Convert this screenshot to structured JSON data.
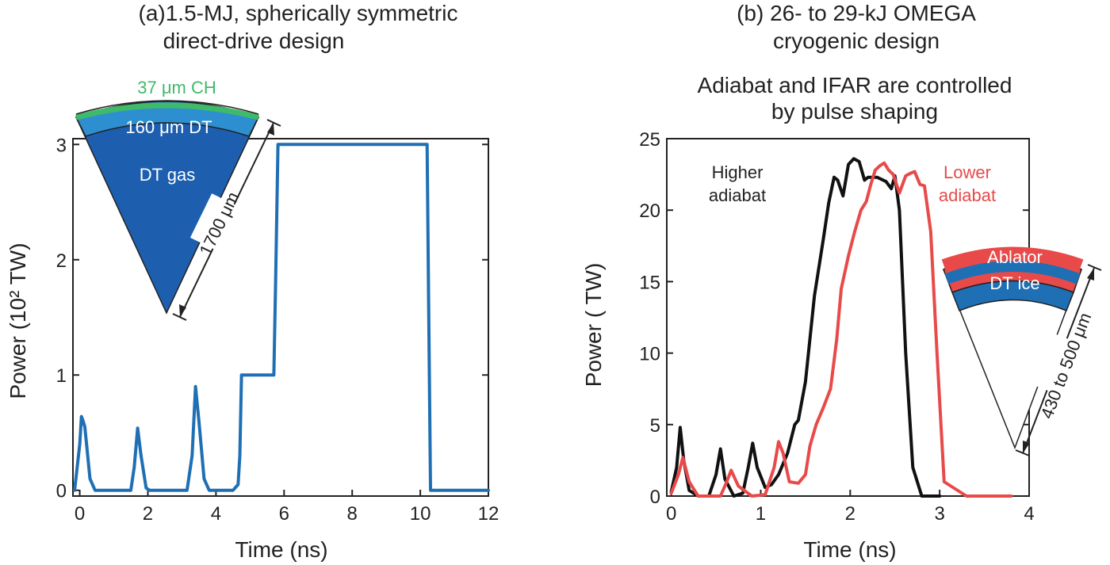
{
  "chart_data": [
    {
      "type": "line",
      "title": "(a)1.5-MJ, spherically symmetric",
      "subtitle": "direct-drive design",
      "xlabel": "Time (ns)",
      "ylabel": "Power (10² TW)",
      "xlim": [
        -0.2,
        12
      ],
      "ylim": [
        -0.05,
        3.05
      ],
      "xticks": [
        0,
        2,
        4,
        6,
        8,
        10,
        12
      ],
      "yticks": [
        0,
        1,
        2,
        3
      ],
      "grid": false,
      "series": [
        {
          "color": "#1f6fb5",
          "x": [
            -0.15,
            0.0,
            0.05,
            0.1,
            0.15,
            0.3,
            0.45,
            1.5,
            1.6,
            1.7,
            1.8,
            1.95,
            2.05,
            3.15,
            3.3,
            3.4,
            3.5,
            3.65,
            3.8,
            4.5,
            4.65,
            4.7,
            4.75,
            5.7,
            5.75,
            5.82,
            5.88,
            10.2,
            10.25,
            10.3,
            12.0
          ],
          "y": [
            0.0,
            0.4,
            0.64,
            0.6,
            0.55,
            0.1,
            0.0,
            0.0,
            0.2,
            0.54,
            0.3,
            0.02,
            0.0,
            0.0,
            0.3,
            0.9,
            0.6,
            0.1,
            0.0,
            0.0,
            0.05,
            0.3,
            1.0,
            1.0,
            1.8,
            3.0,
            3.0,
            3.0,
            1.5,
            0.0,
            0.0
          ]
        }
      ],
      "inset": {
        "shell_label": "37 μm CH",
        "ice_label": "160 μm DT",
        "gas_label": "DT gas",
        "radius_label": "1700 μm",
        "colors": {
          "shell": "#3fba6a",
          "ice": "#2e8fd0",
          "gas": "#1d5fae"
        }
      }
    },
    {
      "type": "line",
      "title": "(b) 26- to 29-kJ OMEGA",
      "subtitle": "cryogenic design",
      "note_line1": "Adiabat and IFAR are controlled",
      "note_line2": "by pulse shaping",
      "xlabel": "Time (ns)",
      "ylabel": "Power ( TW)",
      "xlim": [
        -0.05,
        4
      ],
      "ylim": [
        0,
        25
      ],
      "xticks": [
        0,
        1,
        2,
        3,
        4
      ],
      "yticks": [
        0,
        5,
        10,
        15,
        20,
        25
      ],
      "grid": false,
      "series": [
        {
          "name": "Higher adiabat",
          "label_line1": "Higher",
          "label_line2": "adiabat",
          "color": "#111111",
          "x": [
            0.0,
            0.06,
            0.1,
            0.14,
            0.2,
            0.3,
            0.42,
            0.5,
            0.55,
            0.6,
            0.7,
            0.8,
            0.86,
            0.91,
            0.96,
            1.05,
            1.12,
            1.2,
            1.3,
            1.38,
            1.42,
            1.5,
            1.6,
            1.7,
            1.76,
            1.82,
            1.86,
            1.92,
            1.98,
            2.04,
            2.1,
            2.16,
            2.2,
            2.3,
            2.4,
            2.46,
            2.5,
            2.55,
            2.62,
            2.7,
            2.8,
            3.0
          ],
          "y": [
            0.3,
            2.0,
            4.8,
            2.5,
            0.4,
            0.0,
            0.0,
            1.5,
            3.3,
            1.2,
            0.0,
            0.2,
            2.0,
            3.7,
            2.0,
            0.6,
            0.8,
            1.5,
            3.0,
            5.0,
            5.3,
            8.0,
            14.0,
            18.0,
            20.5,
            22.3,
            22.1,
            21.0,
            23.2,
            23.6,
            23.4,
            22.1,
            22.3,
            22.3,
            22.0,
            21.5,
            22.4,
            20.0,
            10.0,
            2.0,
            0.0,
            0.0
          ]
        },
        {
          "name": "Lower adiabat",
          "label_line1": "Lower",
          "label_line2": "adiabat",
          "color": "#e84a4a",
          "x": [
            0.0,
            0.08,
            0.13,
            0.2,
            0.3,
            0.55,
            0.62,
            0.67,
            0.75,
            0.9,
            1.05,
            1.15,
            1.2,
            1.25,
            1.32,
            1.42,
            1.5,
            1.55,
            1.62,
            1.7,
            1.78,
            1.85,
            1.9,
            1.98,
            2.05,
            2.12,
            2.18,
            2.23,
            2.28,
            2.33,
            2.38,
            2.43,
            2.48,
            2.55,
            2.62,
            2.68,
            2.72,
            2.78,
            2.83,
            2.9,
            2.97,
            3.05,
            3.3,
            3.8
          ],
          "y": [
            0.2,
            1.5,
            2.7,
            1.0,
            0.0,
            0.0,
            1.0,
            1.8,
            0.7,
            0.0,
            0.1,
            2.0,
            3.8,
            3.0,
            1.0,
            0.9,
            1.5,
            3.5,
            5.0,
            6.2,
            7.5,
            11.0,
            14.5,
            16.8,
            18.5,
            20.0,
            20.6,
            21.8,
            22.8,
            23.1,
            23.3,
            22.8,
            22.5,
            21.2,
            22.4,
            22.6,
            22.7,
            21.8,
            21.7,
            18.5,
            10.0,
            1.0,
            0.0,
            0.0
          ]
        }
      ],
      "inset": {
        "ablator_label": "Ablator",
        "ice_label": "DT ice",
        "radius_label": "430 to 500 μm",
        "colors": {
          "ablator": "#e84a4a",
          "ice": "#1f6fb5"
        }
      }
    }
  ]
}
